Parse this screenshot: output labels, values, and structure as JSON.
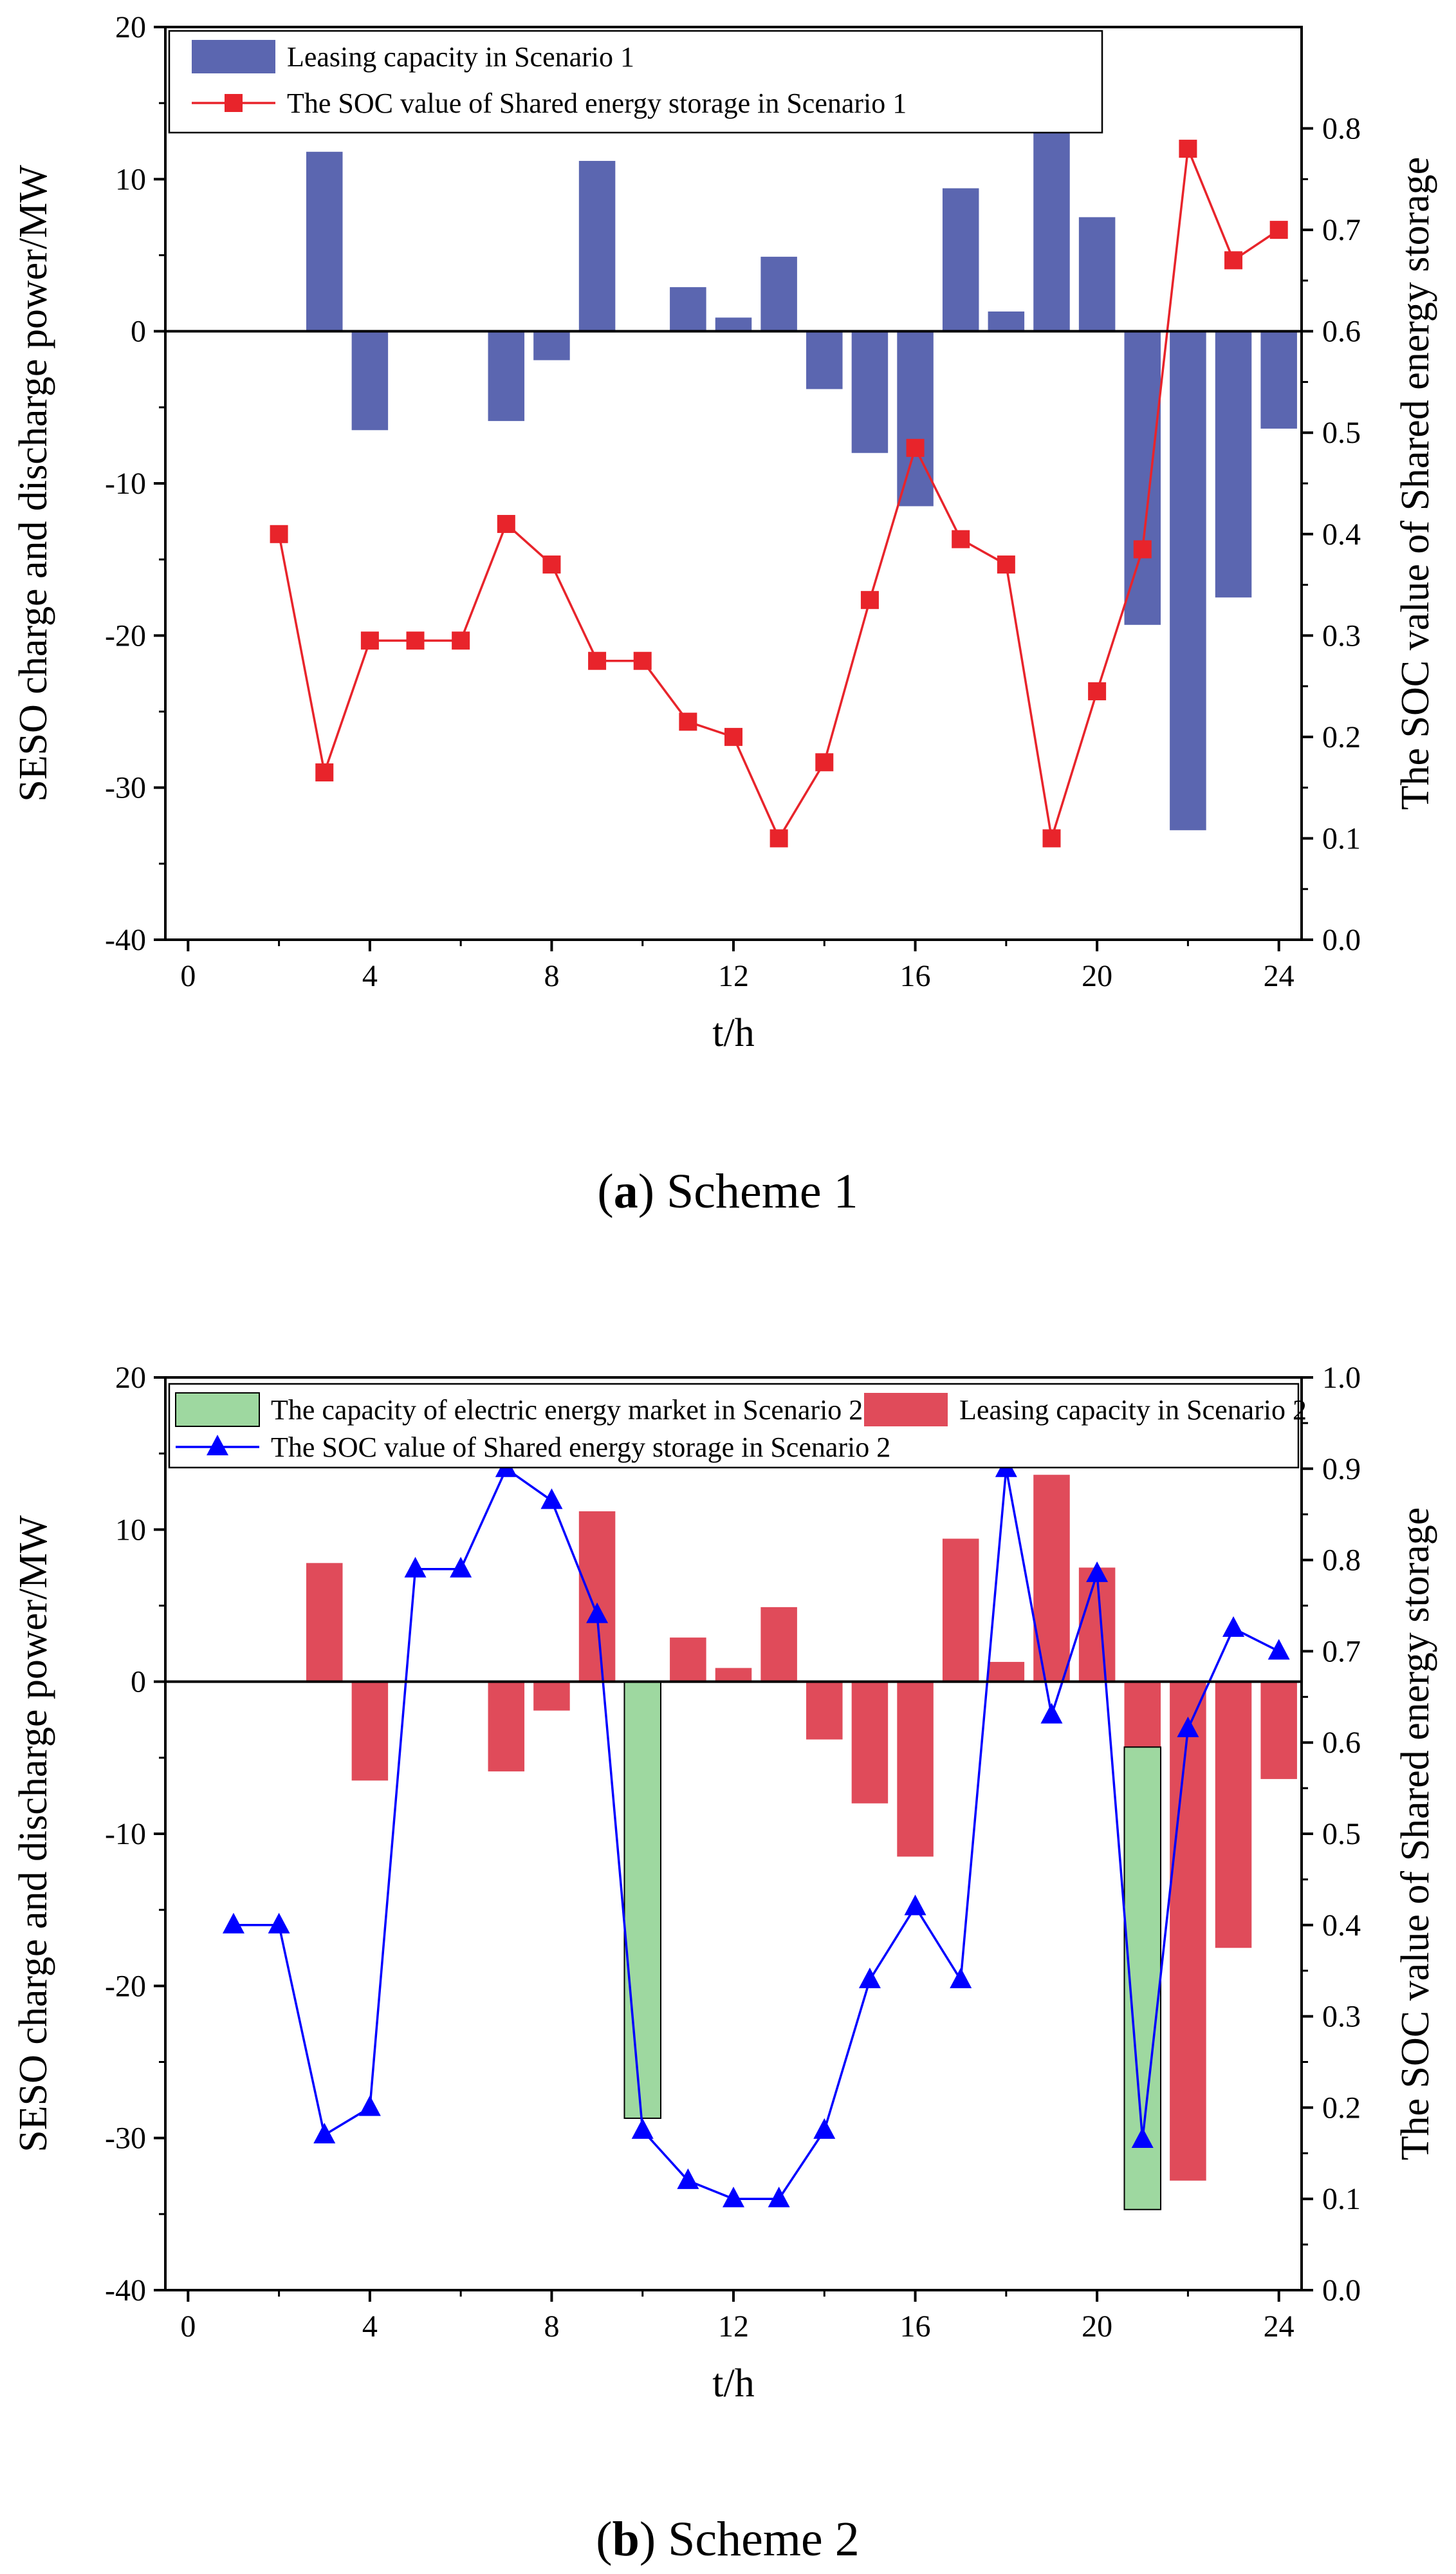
{
  "chart_data": [
    {
      "id": "a",
      "type": "bar+line",
      "caption_label": "a",
      "caption_text": " Scheme 1",
      "xlabel": "t/h",
      "ylabel_left": "SESO charge and discharge power/MW",
      "ylabel_right": "The SOC value of Shared energy storage",
      "xlim": [
        -0.5,
        24.5
      ],
      "ylim_left": [
        -40,
        20
      ],
      "ylim_right": [
        0,
        0.9
      ],
      "x_ticks": [
        "0",
        "4",
        "8",
        "12",
        "16",
        "20",
        "24"
      ],
      "y_ticks_left": [
        "-40",
        "-30",
        "-20",
        "-10",
        "0",
        "10",
        "20"
      ],
      "y_ticks_right": [
        "0.0",
        "0.1",
        "0.2",
        "0.3",
        "0.4",
        "0.5",
        "0.6",
        "0.7",
        "0.8"
      ],
      "legend": [
        "Leasing capacity in Scenario 1",
        "The SOC value of Shared energy storage in Scenario 1"
      ],
      "bar_series": [
        {
          "name": "Leasing capacity in Scenario 1",
          "color": "#5b66b0",
          "x": [
            3,
            4,
            7,
            8,
            9,
            11,
            12,
            13,
            14,
            15,
            16,
            17,
            18,
            19,
            20,
            21,
            22,
            23,
            24
          ],
          "values": [
            11.8,
            -6.5,
            -5.9,
            -1.9,
            11.2,
            2.9,
            0.9,
            4.9,
            -3.8,
            -8.0,
            -11.5,
            9.4,
            1.3,
            14.5,
            7.5,
            -19.3,
            -32.8,
            -17.5,
            -6.4
          ]
        }
      ],
      "line_series": [
        {
          "name": "The SOC value of Shared energy storage in Scenario 1",
          "color": "#e8242b",
          "marker": "square",
          "x": [
            2,
            3,
            4,
            5,
            6,
            7,
            8,
            9,
            10,
            11,
            12,
            13,
            14,
            15,
            16,
            17,
            18,
            19,
            20,
            21,
            22,
            23,
            24
          ],
          "values": [
            0.4,
            0.165,
            0.295,
            0.295,
            0.295,
            0.41,
            0.37,
            0.275,
            0.275,
            0.215,
            0.2,
            0.1,
            0.175,
            0.335,
            0.485,
            0.395,
            0.37,
            0.1,
            0.245,
            0.385,
            0.78,
            0.67,
            0.7
          ]
        }
      ]
    },
    {
      "id": "b",
      "type": "bar+line",
      "caption_label": "b",
      "caption_text": " Scheme 2",
      "xlabel": "t/h",
      "ylabel_left": "SESO charge and discharge power/MW",
      "ylabel_right": "The SOC value of Shared energy storage",
      "xlim": [
        -0.5,
        24.5
      ],
      "ylim_left": [
        -40,
        20
      ],
      "ylim_right": [
        0,
        1.0
      ],
      "x_ticks": [
        "0",
        "4",
        "8",
        "12",
        "16",
        "20",
        "24"
      ],
      "y_ticks_left": [
        "-40",
        "-30",
        "-20",
        "-10",
        "0",
        "10",
        "20"
      ],
      "y_ticks_right": [
        "0.0",
        "0.1",
        "0.2",
        "0.3",
        "0.4",
        "0.5",
        "0.6",
        "0.7",
        "0.8",
        "0.9",
        "1.0"
      ],
      "legend": [
        "The capacity of electric energy market in Scenario 2",
        "Leasing capacity in Scenario 2",
        "The SOC value of Shared energy storage in Scenario 2"
      ],
      "bar_series": [
        {
          "name": "Leasing capacity in Scenario 2",
          "color": "#e04b5a",
          "x": [
            3,
            4,
            7,
            8,
            9,
            11,
            12,
            13,
            14,
            15,
            16,
            17,
            18,
            19,
            20,
            21,
            22,
            23,
            24
          ],
          "values": [
            7.8,
            -6.5,
            -5.9,
            -1.9,
            11.2,
            2.9,
            0.9,
            4.9,
            -3.8,
            -8.0,
            -11.5,
            9.4,
            1.3,
            13.6,
            7.5,
            -4.3,
            -32.8,
            -17.5,
            -6.4
          ]
        },
        {
          "name": "The capacity of electric energy market in Scenario 2",
          "color": "#9ed8a0",
          "x": [
            10,
            21
          ],
          "values": [
            -28.7,
            -30.4
          ],
          "offset_start": [
            0,
            -4.3
          ]
        }
      ],
      "line_series": [
        {
          "name": "The SOC value of Shared energy storage in Scenario 2",
          "color": "#0000ff",
          "marker": "triangle",
          "x": [
            1,
            2,
            3,
            4,
            5,
            6,
            7,
            8,
            9,
            10,
            11,
            12,
            13,
            14,
            15,
            16,
            17,
            18,
            19,
            20,
            21,
            22,
            23,
            24
          ],
          "values": [
            0.4,
            0.4,
            0.17,
            0.2,
            0.79,
            0.79,
            0.9,
            0.865,
            0.74,
            0.175,
            0.12,
            0.1,
            0.1,
            0.175,
            0.34,
            0.42,
            0.34,
            0.9,
            0.63,
            0.785,
            0.165,
            0.615,
            0.725,
            0.7
          ]
        }
      ]
    }
  ]
}
